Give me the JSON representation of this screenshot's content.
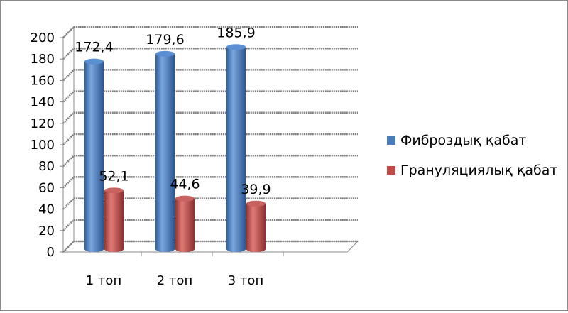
{
  "chart_data": {
    "type": "bar",
    "categories": [
      "1 топ",
      "2 топ",
      "3 топ"
    ],
    "series": [
      {
        "name": "Фиброздық қабат",
        "values": [
          172.4,
          179.6,
          185.9
        ],
        "labels": [
          "172,4",
          "179,6",
          "185,9"
        ],
        "color": "#4a7ebb"
      },
      {
        "name": "Грануляциялық қабат",
        "values": [
          52.1,
          44.6,
          39.9
        ],
        "labels": [
          "52,1",
          "44,6",
          "39,9"
        ],
        "color": "#be4b48"
      }
    ],
    "yticks": [
      "0",
      "20",
      "40",
      "60",
      "80",
      "100",
      "120",
      "140",
      "160",
      "180",
      "200"
    ],
    "ylim": [
      0,
      200
    ],
    "grid": true,
    "legend": "right",
    "style": "3d-cylinder"
  }
}
